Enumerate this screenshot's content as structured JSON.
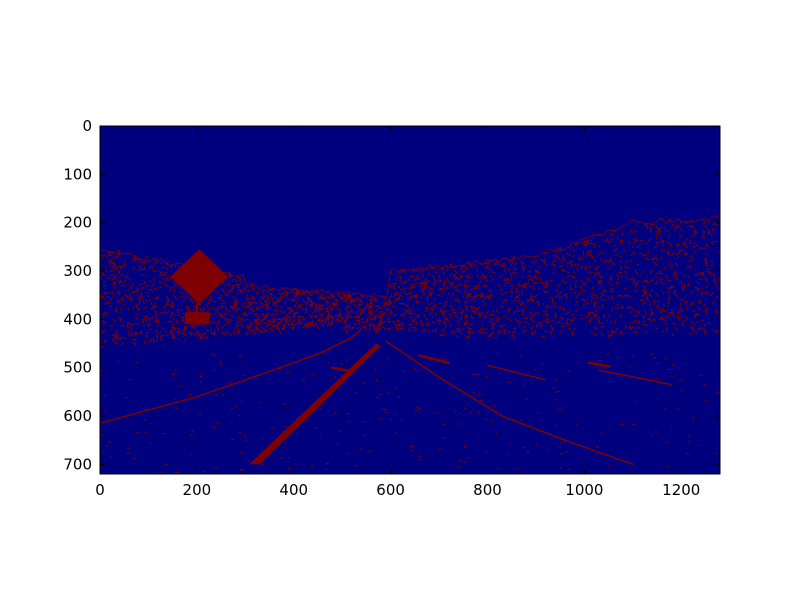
{
  "chart_data": {
    "type": "heatmap",
    "title": "",
    "xlabel": "",
    "ylabel": "",
    "image_size": [
      1280,
      720
    ],
    "xlim": [
      0,
      1280
    ],
    "ylim": [
      720,
      0
    ],
    "x_ticks": [
      0,
      200,
      400,
      600,
      800,
      1000,
      1200
    ],
    "y_ticks": [
      0,
      100,
      200,
      300,
      400,
      500,
      600,
      700
    ],
    "colors": {
      "background": "#00007f",
      "edge": "#7f0000",
      "frame": "#000000"
    },
    "features": {
      "sign_diamond": [
        [
          205,
          255
        ],
        [
          265,
          312
        ],
        [
          205,
          368
        ],
        [
          145,
          312
        ]
      ],
      "sign_plate": [
        [
          175,
          385
        ],
        [
          225,
          385
        ],
        [
          225,
          410
        ],
        [
          175,
          410
        ]
      ],
      "left_lane_strip": [
        [
          308,
          700
        ],
        [
          330,
          700
        ],
        [
          580,
          455
        ],
        [
          570,
          450
        ]
      ],
      "edge_lines": [
        [
          [
            0,
            615
          ],
          [
            200,
            560
          ],
          [
            330,
            515
          ],
          [
            450,
            472
          ],
          [
            515,
            440
          ],
          [
            535,
            425
          ]
        ],
        [
          [
            590,
            445
          ],
          [
            700,
            520
          ],
          [
            830,
            600
          ],
          [
            960,
            650
          ],
          [
            1100,
            700
          ]
        ],
        [
          [
            800,
            495
          ],
          [
            920,
            525
          ]
        ],
        [
          [
            1030,
            505
          ],
          [
            1180,
            535
          ]
        ]
      ],
      "dashes": [
        [
          [
            660,
            475
          ],
          [
            720,
            490
          ]
        ],
        [
          [
            480,
            500
          ],
          [
            520,
            508
          ]
        ],
        [
          [
            1010,
            490
          ],
          [
            1050,
            497
          ]
        ]
      ]
    }
  }
}
